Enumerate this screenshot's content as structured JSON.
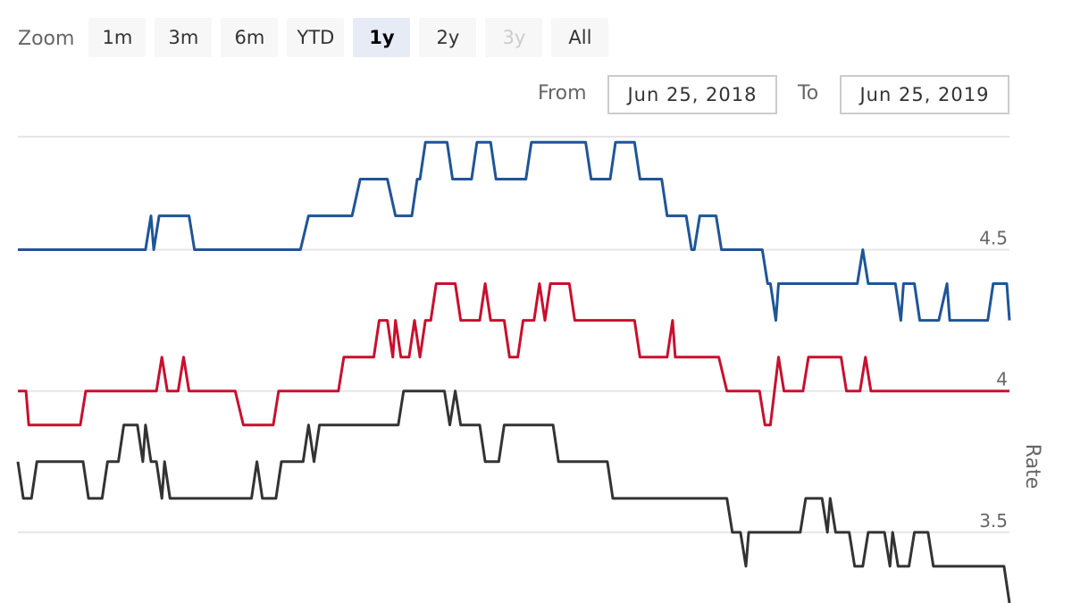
{
  "zoom": {
    "label": "Zoom",
    "buttons": [
      {
        "label": "1m",
        "state": "normal"
      },
      {
        "label": "3m",
        "state": "normal"
      },
      {
        "label": "6m",
        "state": "normal"
      },
      {
        "label": "YTD",
        "state": "normal"
      },
      {
        "label": "1y",
        "state": "active"
      },
      {
        "label": "2y",
        "state": "normal"
      },
      {
        "label": "3y",
        "state": "disabled"
      },
      {
        "label": "All",
        "state": "normal"
      }
    ]
  },
  "range": {
    "from_label": "From",
    "from_value": "Jun 25, 2018",
    "to_label": "To",
    "to_value": "Jun 25, 2019"
  },
  "chart_data": {
    "type": "line",
    "ylabel": "Rate",
    "ylim": [
      3.25,
      4.9
    ],
    "xlim": [
      "2018-06-25",
      "2019-06-25"
    ],
    "yticks": [
      {
        "v": 3.5,
        "label": "3.5"
      },
      {
        "v": 4,
        "label": "4"
      },
      {
        "v": 4.5,
        "label": "4.5"
      }
    ],
    "grid": true,
    "legend": "none",
    "series": [
      {
        "color": "#1f5597",
        "points": [
          [
            "2018-06-25",
            4.5
          ],
          [
            "2018-08-11",
            4.5
          ],
          [
            "2018-08-13",
            4.62
          ],
          [
            "2018-08-14",
            4.5
          ],
          [
            "2018-08-16",
            4.62
          ],
          [
            "2018-08-27",
            4.62
          ],
          [
            "2018-08-29",
            4.5
          ],
          [
            "2018-10-07",
            4.5
          ],
          [
            "2018-10-10",
            4.62
          ],
          [
            "2018-10-26",
            4.62
          ],
          [
            "2018-10-29",
            4.75
          ],
          [
            "2018-11-08",
            4.75
          ],
          [
            "2018-11-11",
            4.62
          ],
          [
            "2018-11-17",
            4.62
          ],
          [
            "2018-11-19",
            4.75
          ],
          [
            "2018-11-20",
            4.75
          ],
          [
            "2018-11-22",
            4.88
          ],
          [
            "2018-11-30",
            4.88
          ],
          [
            "2018-12-02",
            4.75
          ],
          [
            "2018-12-09",
            4.75
          ],
          [
            "2018-12-11",
            4.88
          ],
          [
            "2018-12-16",
            4.88
          ],
          [
            "2018-12-18",
            4.75
          ],
          [
            "2018-12-29",
            4.75
          ],
          [
            "2018-12-31",
            4.88
          ],
          [
            "2019-01-20",
            4.88
          ],
          [
            "2019-01-22",
            4.75
          ],
          [
            "2019-01-29",
            4.75
          ],
          [
            "2019-01-31",
            4.88
          ],
          [
            "2019-02-07",
            4.88
          ],
          [
            "2019-02-09",
            4.75
          ],
          [
            "2019-02-17",
            4.75
          ],
          [
            "2019-02-19",
            4.62
          ],
          [
            "2019-02-26",
            4.62
          ],
          [
            "2019-02-28",
            4.5
          ],
          [
            "2019-03-01",
            4.5
          ],
          [
            "2019-03-03",
            4.62
          ],
          [
            "2019-03-09",
            4.62
          ],
          [
            "2019-03-11",
            4.5
          ],
          [
            "2019-03-26",
            4.5
          ],
          [
            "2019-03-28",
            4.38
          ],
          [
            "2019-03-29",
            4.38
          ],
          [
            "2019-03-31",
            4.25
          ],
          [
            "2019-04-01",
            4.38
          ],
          [
            "2019-04-30",
            4.38
          ],
          [
            "2019-05-02",
            4.5
          ],
          [
            "2019-05-04",
            4.38
          ],
          [
            "2019-05-14",
            4.38
          ],
          [
            "2019-05-16",
            4.25
          ],
          [
            "2019-05-17",
            4.38
          ],
          [
            "2019-05-21",
            4.38
          ],
          [
            "2019-05-23",
            4.25
          ],
          [
            "2019-05-30",
            4.25
          ],
          [
            "2019-06-02",
            4.38
          ],
          [
            "2019-06-03",
            4.25
          ],
          [
            "2019-06-17",
            4.25
          ],
          [
            "2019-06-19",
            4.38
          ],
          [
            "2019-06-24",
            4.38
          ],
          [
            "2019-06-25",
            4.25
          ]
        ]
      },
      {
        "color": "#c8102e",
        "points": [
          [
            "2018-06-25",
            4
          ],
          [
            "2018-06-28",
            4
          ],
          [
            "2018-06-29",
            3.88
          ],
          [
            "2018-07-18",
            3.88
          ],
          [
            "2018-07-20",
            4
          ],
          [
            "2018-08-15",
            4
          ],
          [
            "2018-08-17",
            4.12
          ],
          [
            "2018-08-19",
            4
          ],
          [
            "2018-08-23",
            4
          ],
          [
            "2018-08-25",
            4.12
          ],
          [
            "2018-08-27",
            4
          ],
          [
            "2018-09-13",
            4
          ],
          [
            "2018-09-16",
            3.88
          ],
          [
            "2018-09-27",
            3.88
          ],
          [
            "2018-09-29",
            4
          ],
          [
            "2018-10-21",
            4
          ],
          [
            "2018-10-23",
            4.12
          ],
          [
            "2018-11-03",
            4.12
          ],
          [
            "2018-11-05",
            4.25
          ],
          [
            "2018-11-08",
            4.25
          ],
          [
            "2018-11-10",
            4.12
          ],
          [
            "2018-11-11",
            4.25
          ],
          [
            "2018-11-13",
            4.12
          ],
          [
            "2018-11-16",
            4.12
          ],
          [
            "2018-11-18",
            4.25
          ],
          [
            "2018-11-20",
            4.12
          ],
          [
            "2018-11-22",
            4.25
          ],
          [
            "2018-11-24",
            4.25
          ],
          [
            "2018-11-26",
            4.38
          ],
          [
            "2018-12-03",
            4.38
          ],
          [
            "2018-12-05",
            4.25
          ],
          [
            "2018-12-12",
            4.25
          ],
          [
            "2018-12-14",
            4.38
          ],
          [
            "2018-12-16",
            4.25
          ],
          [
            "2018-12-21",
            4.25
          ],
          [
            "2018-12-23",
            4.12
          ],
          [
            "2018-12-26",
            4.12
          ],
          [
            "2018-12-28",
            4.25
          ],
          [
            "2019-01-01",
            4.25
          ],
          [
            "2019-01-03",
            4.38
          ],
          [
            "2019-01-05",
            4.25
          ],
          [
            "2019-01-07",
            4.38
          ],
          [
            "2019-01-14",
            4.38
          ],
          [
            "2019-01-16",
            4.25
          ],
          [
            "2019-02-07",
            4.25
          ],
          [
            "2019-02-09",
            4.12
          ],
          [
            "2019-02-19",
            4.12
          ],
          [
            "2019-02-21",
            4.25
          ],
          [
            "2019-02-22",
            4.12
          ],
          [
            "2019-03-10",
            4.12
          ],
          [
            "2019-03-13",
            4
          ],
          [
            "2019-03-25",
            4
          ],
          [
            "2019-03-27",
            3.88
          ],
          [
            "2019-03-29",
            3.88
          ],
          [
            "2019-04-01",
            4.12
          ],
          [
            "2019-04-03",
            4
          ],
          [
            "2019-04-10",
            4
          ],
          [
            "2019-04-12",
            4.12
          ],
          [
            "2019-04-24",
            4.12
          ],
          [
            "2019-04-26",
            4
          ],
          [
            "2019-05-01",
            4
          ],
          [
            "2019-05-03",
            4.12
          ],
          [
            "2019-05-05",
            4
          ],
          [
            "2019-06-25",
            4
          ]
        ]
      },
      {
        "color": "#333333",
        "points": [
          [
            "2018-06-25",
            3.75
          ],
          [
            "2018-06-27",
            3.62
          ],
          [
            "2018-06-30",
            3.62
          ],
          [
            "2018-07-02",
            3.75
          ],
          [
            "2018-07-19",
            3.75
          ],
          [
            "2018-07-21",
            3.62
          ],
          [
            "2018-07-26",
            3.62
          ],
          [
            "2018-07-28",
            3.75
          ],
          [
            "2018-08-01",
            3.75
          ],
          [
            "2018-08-03",
            3.88
          ],
          [
            "2018-08-08",
            3.88
          ],
          [
            "2018-08-10",
            3.75
          ],
          [
            "2018-08-11",
            3.88
          ],
          [
            "2018-08-13",
            3.75
          ],
          [
            "2018-08-15",
            3.75
          ],
          [
            "2018-08-17",
            3.62
          ],
          [
            "2018-08-18",
            3.75
          ],
          [
            "2018-08-20",
            3.62
          ],
          [
            "2018-09-19",
            3.62
          ],
          [
            "2018-09-21",
            3.75
          ],
          [
            "2018-09-23",
            3.62
          ],
          [
            "2018-09-28",
            3.62
          ],
          [
            "2018-09-30",
            3.75
          ],
          [
            "2018-10-08",
            3.75
          ],
          [
            "2018-10-10",
            3.88
          ],
          [
            "2018-10-12",
            3.75
          ],
          [
            "2018-10-14",
            3.88
          ],
          [
            "2018-11-12",
            3.88
          ],
          [
            "2018-11-14",
            4
          ],
          [
            "2018-11-29",
            4
          ],
          [
            "2018-12-01",
            3.88
          ],
          [
            "2018-12-03",
            4
          ],
          [
            "2018-12-05",
            3.88
          ],
          [
            "2018-12-12",
            3.88
          ],
          [
            "2018-12-14",
            3.75
          ],
          [
            "2018-12-19",
            3.75
          ],
          [
            "2018-12-21",
            3.88
          ],
          [
            "2019-01-08",
            3.88
          ],
          [
            "2019-01-10",
            3.75
          ],
          [
            "2019-01-28",
            3.75
          ],
          [
            "2019-01-30",
            3.62
          ],
          [
            "2019-03-13",
            3.62
          ],
          [
            "2019-03-15",
            3.5
          ],
          [
            "2019-03-18",
            3.5
          ],
          [
            "2019-03-20",
            3.38
          ],
          [
            "2019-03-21",
            3.5
          ],
          [
            "2019-04-09",
            3.5
          ],
          [
            "2019-04-11",
            3.62
          ],
          [
            "2019-04-17",
            3.62
          ],
          [
            "2019-04-19",
            3.5
          ],
          [
            "2019-04-20",
            3.62
          ],
          [
            "2019-04-22",
            3.5
          ],
          [
            "2019-04-27",
            3.5
          ],
          [
            "2019-04-29",
            3.38
          ],
          [
            "2019-05-02",
            3.38
          ],
          [
            "2019-05-04",
            3.5
          ],
          [
            "2019-05-10",
            3.5
          ],
          [
            "2019-05-12",
            3.38
          ],
          [
            "2019-05-13",
            3.5
          ],
          [
            "2019-05-15",
            3.38
          ],
          [
            "2019-05-19",
            3.38
          ],
          [
            "2019-05-21",
            3.5
          ],
          [
            "2019-05-26",
            3.5
          ],
          [
            "2019-05-28",
            3.38
          ],
          [
            "2019-06-23",
            3.38
          ],
          [
            "2019-06-25",
            3.25
          ]
        ]
      }
    ]
  }
}
